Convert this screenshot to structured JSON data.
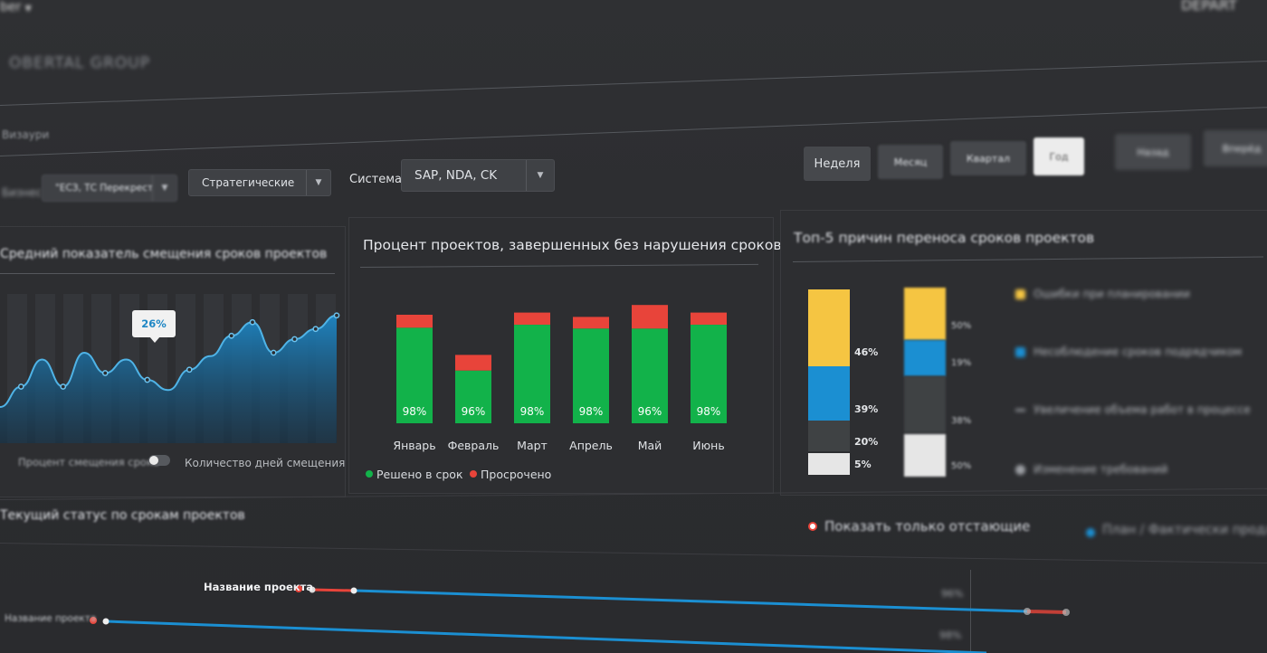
{
  "header": {
    "top_left": "ber",
    "top_right": "DEPART",
    "logo": "OBERTAL GROUP"
  },
  "breadcrumb": "Визаури",
  "filters": {
    "label_left": "Бизнес",
    "filter1_value": "\"ЕСЗ, ТС Перекрест...",
    "filter2_value": "Стратегические",
    "system_label": "Система",
    "system_value": "SAP, NDA, CK"
  },
  "periods": [
    {
      "label": "Неделя",
      "active": false
    },
    {
      "label": "Месяц",
      "active": false
    },
    {
      "label": "Квартал",
      "active": false
    },
    {
      "label": "Год",
      "active": true
    }
  ],
  "right_buttons": [
    "Назад",
    "Вперёд"
  ],
  "panel_left": {
    "title": "Средний показатель смещения сроков проектов",
    "tooltip": "26%",
    "toggle_left": "Процент смещения срока",
    "toggle_right": "Количество дней смещения",
    "series_values": [
      8,
      14,
      22,
      14,
      24,
      18,
      22,
      16,
      13,
      19,
      23,
      29,
      33,
      24,
      28,
      31,
      35
    ]
  },
  "panel_mid": {
    "title": "Процент проектов, завершенных без нарушения сроков",
    "legend": [
      {
        "label": "Решено в срок",
        "color": "#12b24a"
      },
      {
        "label": "Просрочено",
        "color": "#e8443a"
      }
    ]
  },
  "chart_data": {
    "type": "bar",
    "categories": [
      "Январь",
      "Февраль",
      "Март",
      "Апрель",
      "Май",
      "Июнь"
    ],
    "series": [
      {
        "name": "Решено в срок",
        "values": [
          98,
          96,
          98,
          98,
          96,
          98
        ],
        "color": "#12b24a"
      },
      {
        "name": "Просрочено",
        "values": [
          2,
          4,
          2,
          2,
          4,
          2
        ],
        "color": "#e8443a"
      }
    ],
    "data_labels": [
      "98%",
      "96%",
      "98%",
      "98%",
      "96%",
      "98%"
    ],
    "heights": [
      1.0,
      0.63,
      1.02,
      0.98,
      1.09,
      1.02
    ],
    "red_fraction": [
      0.12,
      0.23,
      0.11,
      0.11,
      0.2,
      0.11
    ]
  },
  "panel_right": {
    "title": "Топ-5 причин переноса сроков проектов",
    "stack1_labels": [
      "46%",
      "39%",
      "20%",
      "5%"
    ],
    "stack2_labels": [
      "50%",
      "19%",
      "38%",
      "50%"
    ],
    "legend": [
      {
        "label": "Ошибки при планировании",
        "color": "#f5c542"
      },
      {
        "label": "Несоблюдение сроков подрядчиком",
        "color": "#1b8fd2"
      },
      {
        "label": "Увеличение объема работ в процессе",
        "color": "#3f4244"
      },
      {
        "label": "Изменение требований",
        "color": "#e6e6e6"
      }
    ],
    "colors": {
      "yellow": "#f5c542",
      "blue": "#1b8fd2",
      "dark": "#3f4244",
      "white": "#e6e6e6"
    }
  },
  "bottom": {
    "title": "Текущий статус по срокам проектов",
    "show_only": "Показать только отстающие",
    "right_legend": "План / Фактически продлено",
    "project1": "Название проекта",
    "project2": "Название проекта",
    "p1": "96%",
    "p2": "98%"
  }
}
